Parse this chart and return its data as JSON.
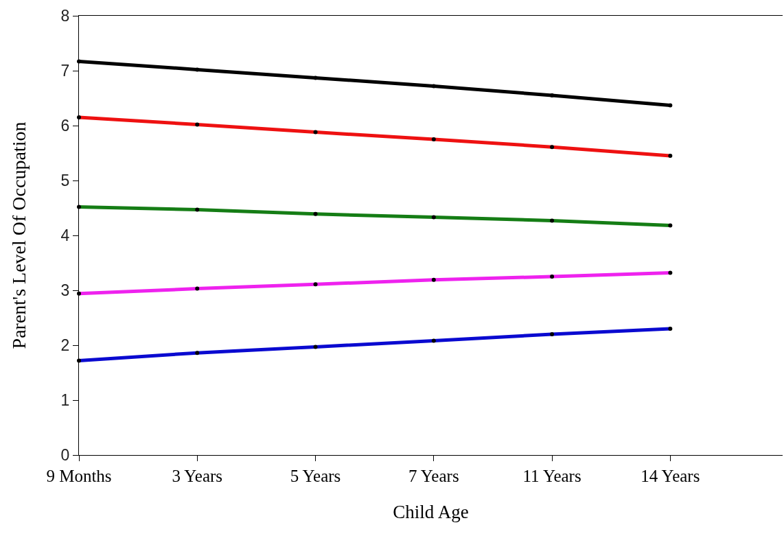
{
  "chart_data": {
    "type": "line",
    "xlabel": "Child Age",
    "ylabel": "Parent's Level Of Occupation",
    "categories": [
      "9 Months",
      "3 Years",
      "5 Years",
      "7 Years",
      "11 Years",
      "14 Years"
    ],
    "ylim": [
      0,
      8
    ],
    "yticks": [
      0,
      1,
      2,
      3,
      4,
      5,
      6,
      7,
      8
    ],
    "marker": "circle",
    "line_style": "solid",
    "series": [
      {
        "color": "#000000",
        "colors": [
          "#000000",
          "#000000",
          "#000000",
          "#000000",
          "#000000",
          "#000000"
        ],
        "values": [
          7.17,
          7.02,
          6.87,
          6.72,
          6.55,
          6.37
        ]
      },
      {
        "color": "#ee1111",
        "colors": [
          "#000000",
          "#000000",
          "#000000",
          "#000000",
          "#000000",
          "#000000"
        ],
        "values": [
          6.15,
          6.02,
          5.88,
          5.75,
          5.61,
          5.45
        ]
      },
      {
        "color": "#157d15",
        "colors": [
          "#000000",
          "#000000",
          "#000000",
          "#000000",
          "#000000",
          "#000000"
        ],
        "values": [
          4.52,
          4.47,
          4.39,
          4.33,
          4.27,
          4.18
        ]
      },
      {
        "color": "#ee22ee",
        "colors": [
          "#000000",
          "#000000",
          "#000000",
          "#000000",
          "#000000",
          "#000000"
        ],
        "values": [
          2.94,
          3.03,
          3.11,
          3.19,
          3.25,
          3.32
        ]
      },
      {
        "color": "#0a0ad0",
        "colors": [
          "#000000",
          "#000000",
          "#000000",
          "#000000",
          "#000000",
          "#000000"
        ],
        "values": [
          1.72,
          1.86,
          1.97,
          2.08,
          2.2,
          2.3
        ]
      }
    ]
  }
}
